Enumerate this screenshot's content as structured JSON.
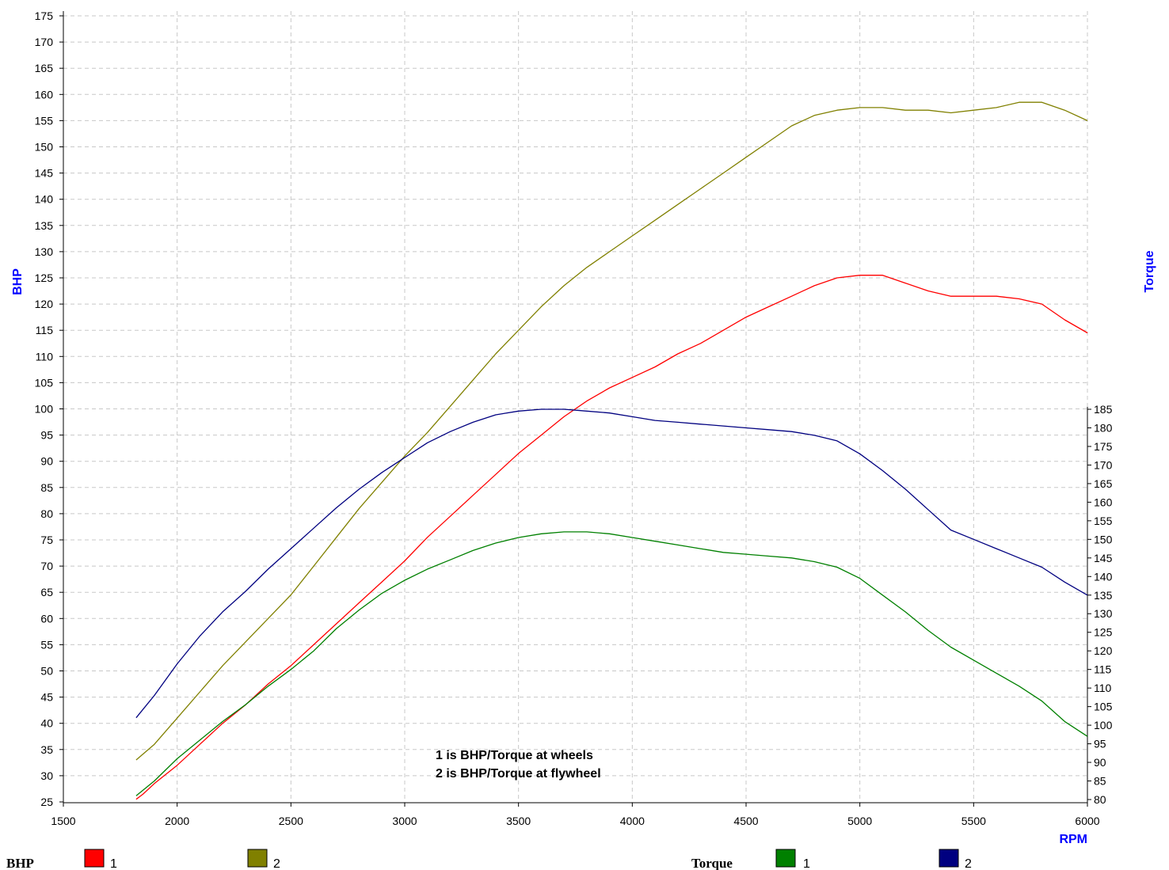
{
  "chart_data": {
    "type": "line",
    "xlabel": "RPM",
    "ylabel_left": "BHP",
    "ylabel_right": "Torque",
    "xlim": [
      1500,
      6000
    ],
    "x_ticks": [
      1500,
      2000,
      2500,
      3000,
      3500,
      4000,
      4500,
      5000,
      5500,
      6000
    ],
    "ylim_left": [
      25,
      176
    ],
    "y_ticks_left": [
      25,
      30,
      35,
      40,
      45,
      50,
      55,
      60,
      65,
      70,
      75,
      80,
      85,
      90,
      95,
      100,
      105,
      110,
      115,
      120,
      125,
      130,
      135,
      140,
      145,
      150,
      155,
      160,
      165,
      170,
      175
    ],
    "torque_axis_range": [
      80,
      185
    ],
    "y_ticks_right": [
      80,
      85,
      90,
      95,
      100,
      105,
      110,
      115,
      120,
      125,
      130,
      135,
      140,
      145,
      150,
      155,
      160,
      165,
      170,
      175,
      180,
      185
    ],
    "grid": true,
    "annotations": [
      "1 is BHP/Torque at wheels",
      "2 is BHP/Torque at flywheel"
    ],
    "legend": {
      "bhp_title": "BHP",
      "torque_title": "Torque",
      "entries": [
        {
          "group": "BHP",
          "label": "1",
          "color": "#ff0000"
        },
        {
          "group": "BHP",
          "label": "2",
          "color": "#808000"
        },
        {
          "group": "Torque",
          "label": "1",
          "color": "#008000"
        },
        {
          "group": "Torque",
          "label": "2",
          "color": "#000080"
        }
      ]
    },
    "series": [
      {
        "name": "BHP 1",
        "axis": "left",
        "color": "#ff0000",
        "x": [
          1820,
          1850,
          1900,
          2000,
          2100,
          2200,
          2300,
          2400,
          2500,
          2600,
          2700,
          2800,
          2900,
          3000,
          3100,
          3200,
          3300,
          3400,
          3500,
          3600,
          3700,
          3800,
          3900,
          4000,
          4100,
          4200,
          4300,
          4400,
          4500,
          4600,
          4700,
          4800,
          4900,
          5000,
          5100,
          5200,
          5300,
          5400,
          5500,
          5600,
          5700,
          5800,
          5900,
          6000
        ],
        "values": [
          25.5,
          26.5,
          28.5,
          32,
          36,
          40,
          43.5,
          47.5,
          51,
          55,
          59,
          63,
          67,
          71,
          75.5,
          79.5,
          83.5,
          87.5,
          91.5,
          95,
          98.5,
          101.5,
          104,
          106,
          108,
          110.5,
          112.5,
          115,
          117.5,
          119.5,
          121.5,
          123.5,
          125,
          125.5,
          125.5,
          124,
          122.5,
          121.5,
          121.5,
          121.5,
          121,
          120,
          117,
          114.5
        ]
      },
      {
        "name": "BHP 2",
        "axis": "left",
        "color": "#808000",
        "x": [
          1820,
          1900,
          2000,
          2100,
          2200,
          2300,
          2400,
          2500,
          2600,
          2700,
          2800,
          2900,
          3000,
          3100,
          3200,
          3300,
          3400,
          3500,
          3600,
          3700,
          3800,
          3900,
          4000,
          4100,
          4200,
          4300,
          4400,
          4500,
          4600,
          4700,
          4800,
          4900,
          5000,
          5100,
          5200,
          5300,
          5400,
          5500,
          5600,
          5700,
          5800,
          5900,
          6000
        ],
        "values": [
          33,
          36,
          41,
          46,
          51,
          55.5,
          60,
          64.5,
          70,
          75.5,
          81,
          86,
          91,
          95.5,
          100.5,
          105.5,
          110.5,
          115,
          119.5,
          123.5,
          127,
          130,
          133,
          136,
          139,
          142,
          145,
          148,
          151,
          154,
          156,
          157,
          157.5,
          157.5,
          157,
          157,
          156.5,
          157,
          157.5,
          158.5,
          158.5,
          157,
          155
        ]
      },
      {
        "name": "Torque 1",
        "axis": "right",
        "color": "#008000",
        "x": [
          1820,
          1900,
          2000,
          2100,
          2200,
          2300,
          2400,
          2500,
          2600,
          2700,
          2800,
          2900,
          3000,
          3100,
          3200,
          3300,
          3400,
          3500,
          3600,
          3700,
          3800,
          3900,
          4000,
          4100,
          4200,
          4300,
          4400,
          4500,
          4600,
          4700,
          4800,
          4900,
          5000,
          5100,
          5200,
          5300,
          5400,
          5500,
          5600,
          5700,
          5800,
          5900,
          6000
        ],
        "values": [
          81,
          85,
          91,
          96,
          101,
          105.5,
          110.5,
          115,
          120,
          126,
          131,
          135.5,
          139,
          142,
          144.5,
          147,
          149,
          150.5,
          151.5,
          152,
          152,
          151.5,
          150.5,
          149.5,
          148.5,
          147.5,
          146.5,
          146,
          145.5,
          145,
          144,
          142.5,
          139.5,
          135,
          130.5,
          125.5,
          121,
          117.5,
          114,
          110.5,
          106.5,
          101,
          97
        ]
      },
      {
        "name": "Torque 2",
        "axis": "right",
        "color": "#000080",
        "x": [
          1820,
          1900,
          2000,
          2100,
          2200,
          2300,
          2400,
          2500,
          2600,
          2700,
          2800,
          2900,
          3000,
          3100,
          3200,
          3300,
          3400,
          3500,
          3600,
          3700,
          3800,
          3900,
          4000,
          4100,
          4200,
          4300,
          4400,
          4500,
          4600,
          4700,
          4800,
          4900,
          5000,
          5100,
          5200,
          5300,
          5400,
          5500,
          5600,
          5700,
          5800,
          5900,
          6000
        ],
        "values": [
          102,
          108,
          116.5,
          124,
          130.5,
          136,
          142,
          147.5,
          153,
          158.5,
          163.5,
          168,
          172,
          176,
          179,
          181.5,
          183.5,
          184.5,
          185,
          185,
          184.5,
          184,
          183,
          182,
          181.5,
          181,
          180.5,
          180,
          179.5,
          179,
          178,
          176.5,
          173,
          168.5,
          163.5,
          158,
          152.5,
          150,
          147.5,
          145,
          142.5,
          138.5,
          135
        ]
      }
    ]
  }
}
